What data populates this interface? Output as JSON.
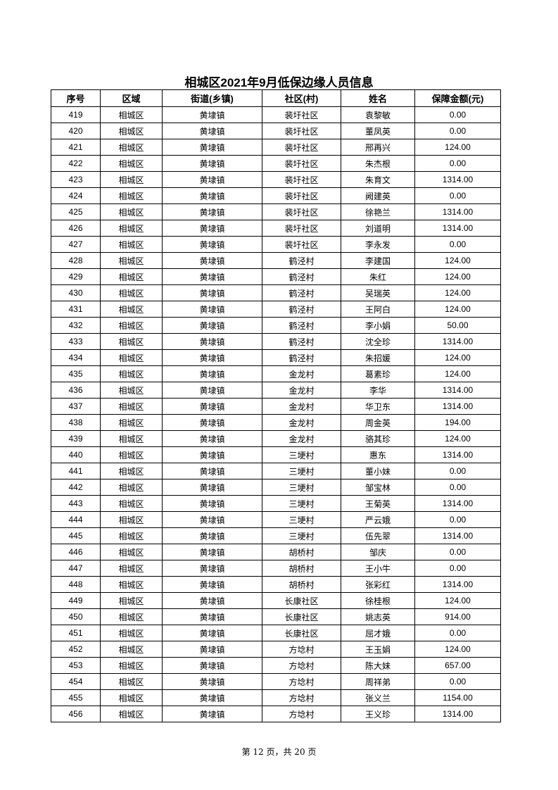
{
  "title": "相城区2021年9月低保边缘人员信息",
  "columns": [
    "序号",
    "区域",
    "街道(乡镇)",
    "社区(村)",
    "姓名",
    "保障金额(元)"
  ],
  "rows": [
    [
      "419",
      "相城区",
      "黄埭镇",
      "裴圩社区",
      "袁黎敏",
      "0.00"
    ],
    [
      "420",
      "相城区",
      "黄埭镇",
      "裴圩社区",
      "董凤英",
      "0.00"
    ],
    [
      "421",
      "相城区",
      "黄埭镇",
      "裴圩社区",
      "邢再兴",
      "124.00"
    ],
    [
      "422",
      "相城区",
      "黄埭镇",
      "裴圩社区",
      "朱杰根",
      "0.00"
    ],
    [
      "423",
      "相城区",
      "黄埭镇",
      "裴圩社区",
      "朱育文",
      "1314.00"
    ],
    [
      "424",
      "相城区",
      "黄埭镇",
      "裴圩社区",
      "阙建英",
      "0.00"
    ],
    [
      "425",
      "相城区",
      "黄埭镇",
      "裴圩社区",
      "徐艳兰",
      "1314.00"
    ],
    [
      "426",
      "相城区",
      "黄埭镇",
      "裴圩社区",
      "刘道明",
      "1314.00"
    ],
    [
      "427",
      "相城区",
      "黄埭镇",
      "裴圩社区",
      "李永发",
      "0.00"
    ],
    [
      "428",
      "相城区",
      "黄埭镇",
      "鹤泾村",
      "李建国",
      "124.00"
    ],
    [
      "429",
      "相城区",
      "黄埭镇",
      "鹤泾村",
      "朱红",
      "124.00"
    ],
    [
      "430",
      "相城区",
      "黄埭镇",
      "鹤泾村",
      "吴瑞英",
      "124.00"
    ],
    [
      "431",
      "相城区",
      "黄埭镇",
      "鹤泾村",
      "王阿白",
      "124.00"
    ],
    [
      "432",
      "相城区",
      "黄埭镇",
      "鹤泾村",
      "李小娟",
      "50.00"
    ],
    [
      "433",
      "相城区",
      "黄埭镇",
      "鹤泾村",
      "沈全珍",
      "1314.00"
    ],
    [
      "434",
      "相城区",
      "黄埭镇",
      "鹤泾村",
      "朱招媛",
      "124.00"
    ],
    [
      "435",
      "相城区",
      "黄埭镇",
      "金龙村",
      "葛素珍",
      "124.00"
    ],
    [
      "436",
      "相城区",
      "黄埭镇",
      "金龙村",
      "李华",
      "1314.00"
    ],
    [
      "437",
      "相城区",
      "黄埭镇",
      "金龙村",
      "华卫东",
      "1314.00"
    ],
    [
      "438",
      "相城区",
      "黄埭镇",
      "金龙村",
      "周金英",
      "194.00"
    ],
    [
      "439",
      "相城区",
      "黄埭镇",
      "金龙村",
      "骆其珍",
      "124.00"
    ],
    [
      "440",
      "相城区",
      "黄埭镇",
      "三埂村",
      "惠东",
      "1314.00"
    ],
    [
      "441",
      "相城区",
      "黄埭镇",
      "三埂村",
      "董小妹",
      "0.00"
    ],
    [
      "442",
      "相城区",
      "黄埭镇",
      "三埂村",
      "邹宝林",
      "0.00"
    ],
    [
      "443",
      "相城区",
      "黄埭镇",
      "三埂村",
      "王菊英",
      "1314.00"
    ],
    [
      "444",
      "相城区",
      "黄埭镇",
      "三埂村",
      "严云娥",
      "0.00"
    ],
    [
      "445",
      "相城区",
      "黄埭镇",
      "三埂村",
      "伍先翠",
      "1314.00"
    ],
    [
      "446",
      "相城区",
      "黄埭镇",
      "胡桥村",
      "邹庆",
      "0.00"
    ],
    [
      "447",
      "相城区",
      "黄埭镇",
      "胡桥村",
      "王小牛",
      "0.00"
    ],
    [
      "448",
      "相城区",
      "黄埭镇",
      "胡桥村",
      "张彩红",
      "1314.00"
    ],
    [
      "449",
      "相城区",
      "黄埭镇",
      "长康社区",
      "徐桂根",
      "124.00"
    ],
    [
      "450",
      "相城区",
      "黄埭镇",
      "长康社区",
      "姚志英",
      "914.00"
    ],
    [
      "451",
      "相城区",
      "黄埭镇",
      "长康社区",
      "屈才娥",
      "0.00"
    ],
    [
      "452",
      "相城区",
      "黄埭镇",
      "方埝村",
      "王玉娟",
      "124.00"
    ],
    [
      "453",
      "相城区",
      "黄埭镇",
      "方埝村",
      "陈大妹",
      "657.00"
    ],
    [
      "454",
      "相城区",
      "黄埭镇",
      "方埝村",
      "周祥弟",
      "0.00"
    ],
    [
      "455",
      "相城区",
      "黄埭镇",
      "方埝村",
      "张义兰",
      "1154.00"
    ],
    [
      "456",
      "相城区",
      "黄埭镇",
      "方埝村",
      "王义珍",
      "1314.00"
    ]
  ],
  "footer": "第 12 页，共 20 页"
}
